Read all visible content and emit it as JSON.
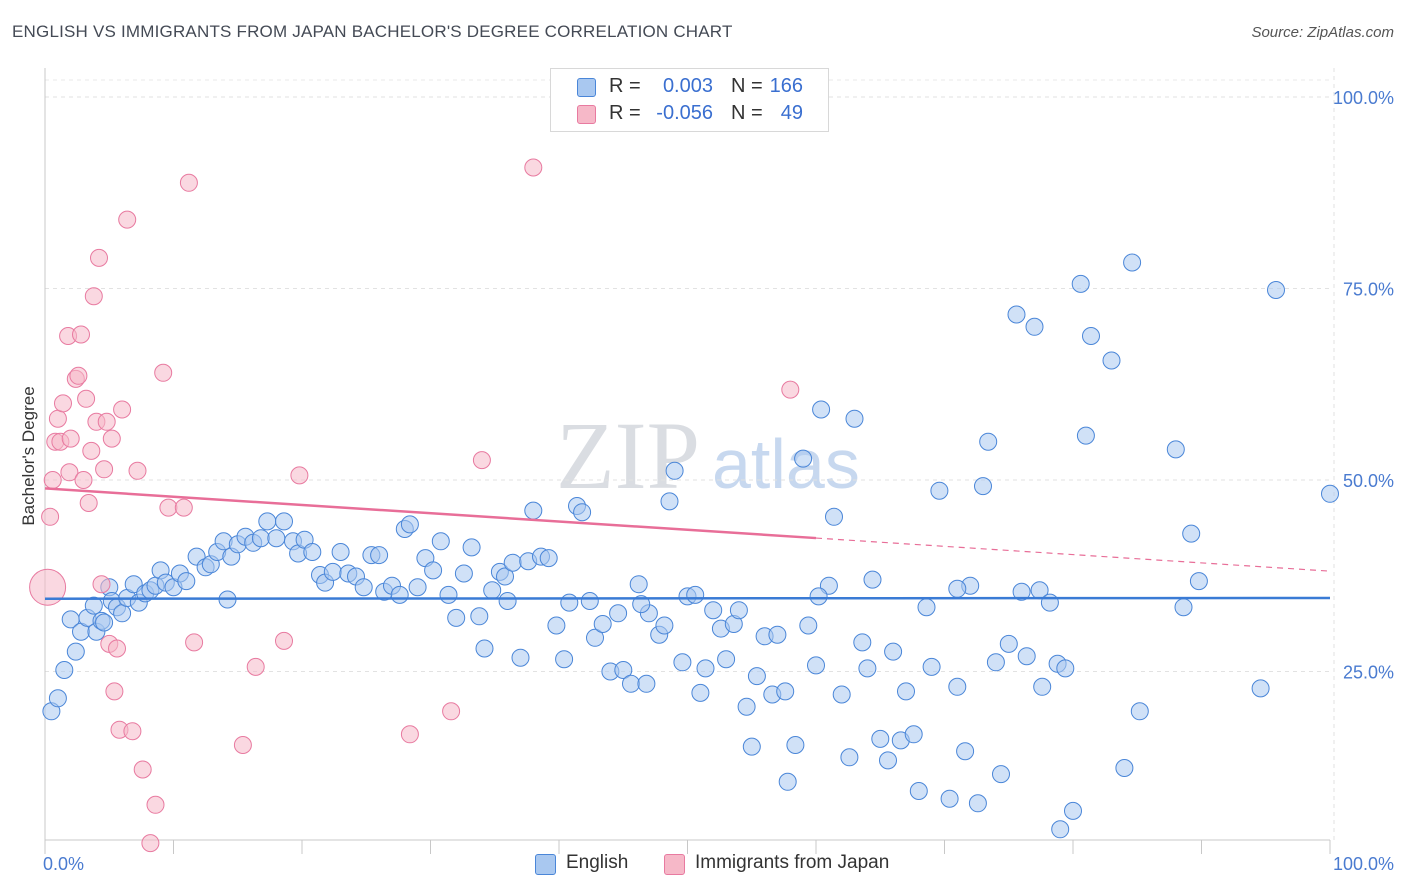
{
  "title": "ENGLISH VS IMMIGRANTS FROM JAPAN BACHELOR'S DEGREE CORRELATION CHART",
  "source": "Source: ZipAtlas.com",
  "watermark": {
    "zip": "ZIP",
    "atlas": "atlas"
  },
  "legend": {
    "rows": [
      {
        "r_label": "R =",
        "r_value": "0.003",
        "n_label": "N =",
        "n_value": "166",
        "color": "#a9c8f0"
      },
      {
        "r_label": "R =",
        "r_value": "-0.056",
        "n_label": "N =",
        "n_value": "49",
        "color": "#f6b8c8"
      }
    ]
  },
  "bottom_legend": [
    {
      "label": "English",
      "color": "#a9c8f0"
    },
    {
      "label": "Immigrants from Japan",
      "color": "#f6b8c8"
    }
  ],
  "chart_data": {
    "type": "scatter",
    "title": "ENGLISH VS IMMIGRANTS FROM JAPAN BACHELOR'S DEGREE CORRELATION CHART",
    "xlabel": "",
    "ylabel": "Bachelor's Degree",
    "xlim": [
      0,
      100
    ],
    "ylim": [
      0,
      100
    ],
    "x_tick_labels": [
      "0.0%",
      "100.0%"
    ],
    "y_tick_labels": [
      {
        "value": 100,
        "label": "100.0%"
      },
      {
        "value": 75,
        "label": "75.0%"
      },
      {
        "value": 50,
        "label": "50.0%"
      },
      {
        "value": 25,
        "label": "25.0%"
      }
    ],
    "grid": true,
    "colors": {
      "english": "#4a86d8",
      "japan": "#e87aa0",
      "english_fill": "#a9c8f0",
      "japan_fill": "#f6b8c8"
    },
    "series": [
      {
        "name": "English",
        "trend": {
          "x": [
            0,
            100
          ],
          "y": [
            34.5,
            34.6
          ],
          "dashed_from": null
        },
        "points": [
          [
            0.5,
            19.8
          ],
          [
            1.0,
            21.5
          ],
          [
            1.5,
            25.2
          ],
          [
            2.0,
            31.8
          ],
          [
            2.4,
            27.6
          ],
          [
            2.8,
            30.2
          ],
          [
            3.3,
            32.0
          ],
          [
            3.8,
            33.6
          ],
          [
            4.0,
            30.2
          ],
          [
            4.4,
            31.6
          ],
          [
            4.6,
            31.4
          ],
          [
            5.0,
            36.0
          ],
          [
            5.2,
            34.2
          ],
          [
            5.6,
            33.4
          ],
          [
            6.0,
            32.6
          ],
          [
            6.4,
            34.6
          ],
          [
            6.9,
            36.4
          ],
          [
            7.3,
            34.0
          ],
          [
            7.8,
            35.2
          ],
          [
            8.2,
            35.6
          ],
          [
            8.6,
            36.2
          ],
          [
            9.0,
            38.2
          ],
          [
            9.4,
            36.6
          ],
          [
            10.0,
            36.0
          ],
          [
            10.5,
            37.8
          ],
          [
            11.0,
            36.8
          ],
          [
            11.8,
            40.0
          ],
          [
            12.5,
            38.6
          ],
          [
            12.9,
            39.0
          ],
          [
            13.4,
            40.6
          ],
          [
            13.9,
            42.0
          ],
          [
            14.5,
            40.0
          ],
          [
            15.0,
            41.6
          ],
          [
            15.6,
            42.6
          ],
          [
            16.2,
            41.8
          ],
          [
            16.8,
            42.4
          ],
          [
            17.3,
            44.6
          ],
          [
            18.0,
            42.4
          ],
          [
            18.6,
            44.6
          ],
          [
            19.3,
            42.0
          ],
          [
            19.7,
            40.4
          ],
          [
            20.2,
            42.2
          ],
          [
            20.8,
            40.6
          ],
          [
            21.4,
            37.6
          ],
          [
            21.8,
            36.6
          ],
          [
            22.4,
            38.0
          ],
          [
            23.0,
            40.6
          ],
          [
            23.6,
            37.8
          ],
          [
            24.2,
            37.4
          ],
          [
            24.8,
            36.0
          ],
          [
            25.4,
            40.2
          ],
          [
            26.0,
            40.2
          ],
          [
            26.4,
            35.4
          ],
          [
            27.0,
            36.2
          ],
          [
            27.6,
            35.0
          ],
          [
            28.0,
            43.6
          ],
          [
            28.4,
            44.2
          ],
          [
            29.0,
            36.0
          ],
          [
            29.6,
            39.8
          ],
          [
            30.2,
            38.2
          ],
          [
            30.8,
            42.0
          ],
          [
            31.4,
            35.0
          ],
          [
            32.0,
            32.0
          ],
          [
            32.6,
            37.8
          ],
          [
            33.2,
            41.2
          ],
          [
            33.8,
            32.2
          ],
          [
            34.2,
            28.0
          ],
          [
            34.8,
            35.6
          ],
          [
            35.4,
            38.0
          ],
          [
            35.8,
            37.4
          ],
          [
            36.4,
            39.2
          ],
          [
            37.0,
            26.8
          ],
          [
            37.6,
            39.4
          ],
          [
            38.0,
            46.0
          ],
          [
            38.6,
            40.0
          ],
          [
            39.2,
            39.8
          ],
          [
            39.8,
            31.0
          ],
          [
            40.4,
            26.6
          ],
          [
            40.8,
            34.0
          ],
          [
            41.4,
            46.6
          ],
          [
            41.8,
            45.8
          ],
          [
            42.4,
            34.2
          ],
          [
            42.8,
            29.4
          ],
          [
            43.4,
            31.2
          ],
          [
            44.0,
            25.0
          ],
          [
            44.6,
            32.6
          ],
          [
            45.0,
            25.2
          ],
          [
            45.6,
            23.4
          ],
          [
            46.2,
            36.4
          ],
          [
            46.8,
            23.4
          ],
          [
            47.0,
            32.6
          ],
          [
            47.8,
            29.8
          ],
          [
            48.2,
            31.0
          ],
          [
            48.6,
            47.2
          ],
          [
            49.0,
            51.2
          ],
          [
            49.6,
            26.2
          ],
          [
            50.0,
            34.8
          ],
          [
            50.6,
            35.0
          ],
          [
            51.0,
            22.2
          ],
          [
            51.4,
            25.4
          ],
          [
            52.0,
            33.0
          ],
          [
            52.6,
            30.6
          ],
          [
            53.0,
            26.6
          ],
          [
            53.6,
            31.2
          ],
          [
            54.0,
            33.0
          ],
          [
            54.6,
            20.4
          ],
          [
            55.0,
            15.2
          ],
          [
            55.4,
            24.4
          ],
          [
            56.0,
            29.6
          ],
          [
            56.6,
            22.0
          ],
          [
            57.0,
            29.8
          ],
          [
            57.6,
            22.4
          ],
          [
            57.8,
            10.6
          ],
          [
            58.4,
            15.4
          ],
          [
            59.0,
            52.8
          ],
          [
            59.4,
            31.0
          ],
          [
            60.0,
            25.8
          ],
          [
            60.4,
            59.2
          ],
          [
            61.0,
            36.2
          ],
          [
            61.4,
            45.2
          ],
          [
            62.0,
            22.0
          ],
          [
            62.6,
            13.8
          ],
          [
            63.0,
            58.0
          ],
          [
            63.6,
            28.8
          ],
          [
            64.0,
            25.4
          ],
          [
            64.4,
            37.0
          ],
          [
            65.0,
            16.2
          ],
          [
            65.6,
            13.4
          ],
          [
            66.0,
            27.6
          ],
          [
            66.6,
            16.0
          ],
          [
            67.0,
            22.4
          ],
          [
            67.6,
            16.8
          ],
          [
            68.0,
            9.4
          ],
          [
            68.6,
            33.4
          ],
          [
            69.0,
            25.6
          ],
          [
            69.6,
            48.6
          ],
          [
            70.4,
            8.4
          ],
          [
            71.0,
            23.0
          ],
          [
            71.6,
            14.6
          ],
          [
            72.0,
            36.2
          ],
          [
            72.6,
            7.8
          ],
          [
            73.0,
            49.2
          ],
          [
            73.4,
            55.0
          ],
          [
            74.0,
            26.2
          ],
          [
            74.4,
            11.6
          ],
          [
            75.0,
            28.6
          ],
          [
            75.6,
            71.6
          ],
          [
            76.0,
            35.4
          ],
          [
            76.4,
            27.0
          ],
          [
            77.0,
            70.0
          ],
          [
            77.4,
            35.6
          ],
          [
            77.6,
            23.0
          ],
          [
            78.2,
            34.0
          ],
          [
            78.8,
            26.0
          ],
          [
            79.0,
            4.4
          ],
          [
            79.4,
            25.4
          ],
          [
            80.0,
            6.8
          ],
          [
            80.6,
            75.6
          ],
          [
            81.0,
            55.8
          ],
          [
            81.4,
            68.8
          ],
          [
            83.0,
            65.6
          ],
          [
            84.0,
            12.4
          ],
          [
            84.6,
            78.4
          ],
          [
            85.2,
            19.8
          ],
          [
            88.0,
            54.0
          ],
          [
            88.6,
            33.4
          ],
          [
            89.2,
            43.0
          ],
          [
            89.8,
            36.8
          ],
          [
            94.6,
            22.8
          ],
          [
            95.8,
            74.8
          ],
          [
            100.0,
            48.2
          ],
          [
            71.0,
            35.8
          ],
          [
            60.2,
            34.8
          ],
          [
            46.4,
            33.8
          ],
          [
            36.0,
            34.2
          ],
          [
            14.2,
            34.4
          ]
        ]
      },
      {
        "name": "Immigrants from Japan",
        "trend": {
          "x": [
            0,
            100
          ],
          "y": [
            48.9,
            38.1
          ],
          "dashed_from": 60
        },
        "points": [
          [
            0.2,
            36.0
          ],
          [
            0.4,
            45.2
          ],
          [
            0.6,
            50.0
          ],
          [
            0.8,
            55.0
          ],
          [
            1.0,
            58.0
          ],
          [
            1.2,
            55.0
          ],
          [
            1.4,
            60.0
          ],
          [
            1.8,
            68.8
          ],
          [
            1.9,
            51.0
          ],
          [
            2.0,
            55.4
          ],
          [
            2.4,
            63.2
          ],
          [
            2.6,
            63.6
          ],
          [
            2.8,
            69.0
          ],
          [
            3.0,
            50.0
          ],
          [
            3.2,
            60.6
          ],
          [
            3.4,
            47.0
          ],
          [
            3.6,
            53.8
          ],
          [
            3.8,
            74.0
          ],
          [
            4.0,
            57.6
          ],
          [
            4.2,
            79.0
          ],
          [
            4.4,
            36.4
          ],
          [
            4.6,
            51.4
          ],
          [
            4.8,
            57.6
          ],
          [
            5.0,
            28.6
          ],
          [
            5.2,
            55.4
          ],
          [
            5.4,
            22.4
          ],
          [
            5.6,
            28.0
          ],
          [
            5.8,
            17.4
          ],
          [
            6.0,
            59.2
          ],
          [
            6.4,
            84.0
          ],
          [
            6.8,
            17.2
          ],
          [
            7.2,
            51.2
          ],
          [
            7.6,
            12.2
          ],
          [
            8.2,
            2.6
          ],
          [
            8.6,
            7.6
          ],
          [
            9.2,
            64.0
          ],
          [
            9.6,
            46.4
          ],
          [
            10.8,
            46.4
          ],
          [
            11.2,
            88.8
          ],
          [
            11.6,
            28.8
          ],
          [
            15.4,
            15.4
          ],
          [
            16.4,
            25.6
          ],
          [
            18.6,
            29.0
          ],
          [
            19.8,
            50.6
          ],
          [
            28.4,
            16.8
          ],
          [
            31.6,
            19.8
          ],
          [
            34.0,
            52.6
          ],
          [
            38.0,
            90.8
          ],
          [
            58.0,
            61.8
          ]
        ]
      }
    ]
  }
}
